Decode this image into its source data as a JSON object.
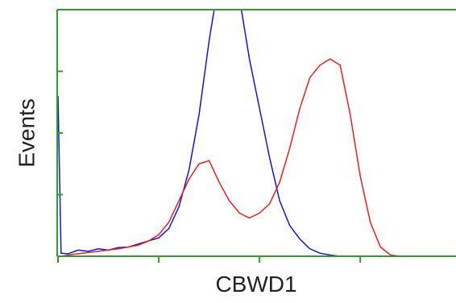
{
  "chart_data": {
    "type": "line",
    "xlabel": "CBWD1",
    "ylabel": "Events",
    "x": [
      0,
      0.03,
      0.1,
      0.2,
      0.3,
      0.4,
      0.5,
      0.6,
      0.7,
      0.8,
      0.9,
      1.0,
      1.1,
      1.2,
      1.3,
      1.4,
      1.5,
      1.6,
      1.7,
      1.8,
      1.9,
      2.0,
      2.1,
      2.2,
      2.3,
      2.4,
      2.5,
      2.6,
      2.7,
      2.8,
      2.9,
      3.0,
      3.1,
      3.2,
      3.3,
      3.4
    ],
    "series": [
      {
        "color": "#1414e0",
        "values": [
          260,
          5,
          4,
          10,
          8,
          12,
          10,
          14,
          15,
          20,
          25,
          30,
          45,
          80,
          140,
          230,
          350,
          450,
          450,
          420,
          320,
          240,
          160,
          90,
          50,
          28,
          12,
          5,
          2,
          0,
          0,
          0,
          0,
          0,
          0,
          0
        ]
      },
      {
        "color": "#e82020",
        "values": [
          0,
          0,
          2,
          4,
          6,
          8,
          10,
          12,
          15,
          18,
          25,
          35,
          55,
          90,
          125,
          150,
          155,
          120,
          90,
          70,
          62,
          70,
          85,
          120,
          175,
          240,
          290,
          310,
          320,
          310,
          230,
          130,
          55,
          15,
          2,
          0
        ]
      }
    ],
    "xlim": [
      0,
      3.95
    ],
    "ylim": [
      0,
      400
    ],
    "xticks": [
      0,
      1,
      2,
      3
    ],
    "yticks": [
      0,
      100,
      200,
      300,
      400
    ],
    "frame_color": "#2e9e2e"
  }
}
